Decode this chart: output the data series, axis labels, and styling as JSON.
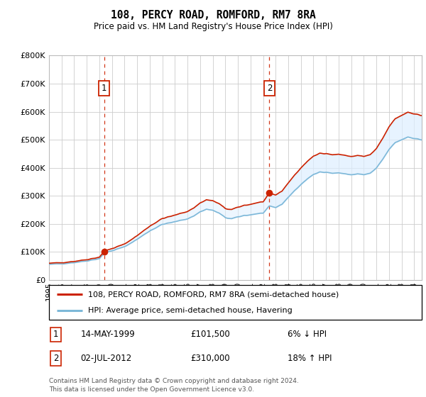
{
  "title": "108, PERCY ROAD, ROMFORD, RM7 8RA",
  "subtitle": "Price paid vs. HM Land Registry's House Price Index (HPI)",
  "legend_line1": "108, PERCY ROAD, ROMFORD, RM7 8RA (semi-detached house)",
  "legend_line2": "HPI: Average price, semi-detached house, Havering",
  "annotation1_date": "14-MAY-1999",
  "annotation1_price": "£101,500",
  "annotation1_hpi": "6% ↓ HPI",
  "annotation1_year": 1999.37,
  "annotation1_value": 101500,
  "annotation2_date": "02-JUL-2012",
  "annotation2_price": "£310,000",
  "annotation2_hpi": "18% ↑ HPI",
  "annotation2_year": 2012.5,
  "annotation2_value": 310000,
  "footer": "Contains HM Land Registry data © Crown copyright and database right 2024.\nThis data is licensed under the Open Government Licence v3.0.",
  "hpi_color": "#7db8d8",
  "price_color": "#cc2200",
  "vline_color": "#cc2200",
  "fill_color": "#ddeeff",
  "background_color": "#ffffff",
  "grid_color": "#cccccc",
  "ylim": [
    0,
    800000
  ],
  "yticks": [
    0,
    100000,
    200000,
    300000,
    400000,
    500000,
    600000,
    700000,
    800000
  ],
  "ytick_labels": [
    "£0",
    "£100K",
    "£200K",
    "£300K",
    "£400K",
    "£500K",
    "£600K",
    "£700K",
    "£800K"
  ],
  "sale1_year": 1999.37,
  "sale1_value": 101500,
  "sale2_year": 2012.5,
  "sale2_value": 310000,
  "hpi_base_year": 1995.0,
  "hpi_base_value": 55000,
  "note_scale1": 1.265,
  "note_scale2": 1.185
}
